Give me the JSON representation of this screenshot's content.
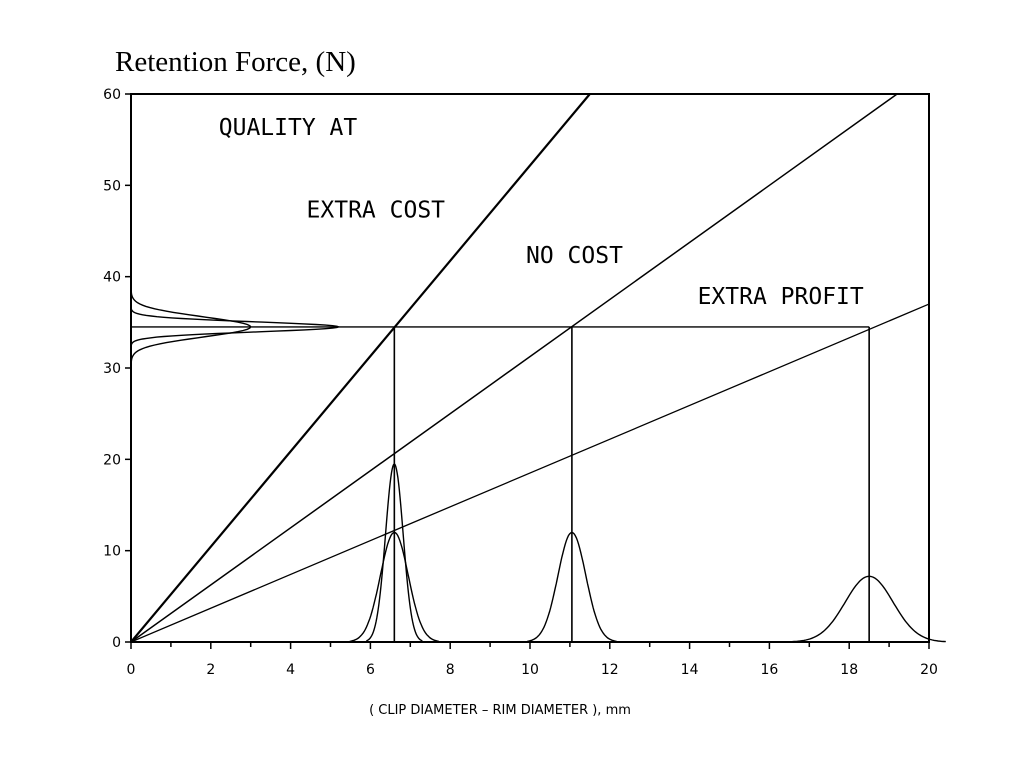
{
  "chart_data": {
    "type": "line",
    "title": "Retention Force, (N)",
    "xlabel": "( CLIP DIAMETER – RIM DIAMETER ), mm",
    "ylabel": "",
    "xlim": [
      0,
      20
    ],
    "ylim": [
      0,
      60
    ],
    "x_ticks": [
      0,
      2,
      4,
      6,
      8,
      10,
      12,
      14,
      16,
      18,
      20
    ],
    "y_ticks": [
      0,
      10,
      20,
      30,
      40,
      50,
      60
    ],
    "grid": false,
    "series": [
      {
        "name": "EXTRA COST",
        "x": [
          0,
          11.5
        ],
        "y": [
          0,
          60
        ]
      },
      {
        "name": "NO COST",
        "x": [
          0,
          19.2
        ],
        "y": [
          0,
          60
        ]
      },
      {
        "name": "EXTRA PROFIT",
        "x": [
          0,
          20
        ],
        "y": [
          0,
          37
        ]
      }
    ],
    "target_force": 34.5,
    "drop_x": [
      6.6,
      11.05,
      18.5
    ],
    "force_distributions": [
      {
        "center": 34.5,
        "peak_x": 5.2,
        "sigma": 0.55
      },
      {
        "center": 34.5,
        "peak_x": 3.0,
        "sigma": 1.1
      }
    ],
    "diameter_distributions": [
      {
        "center": 6.6,
        "peak_y": 19.5,
        "sigma": 0.22
      },
      {
        "center": 6.6,
        "peak_y": 12.0,
        "sigma": 0.35
      },
      {
        "center": 11.05,
        "peak_y": 12.0,
        "sigma": 0.35
      },
      {
        "center": 18.5,
        "peak_y": 7.2,
        "sigma": 0.6
      }
    ],
    "annotations": [
      {
        "text": "QUALITY AT",
        "x": 2.2,
        "y": 55.5
      },
      {
        "text": "EXTRA COST",
        "x": 4.4,
        "y": 46.5
      },
      {
        "text": "NO COST",
        "x": 9.9,
        "y": 41.5
      },
      {
        "text": "EXTRA PROFIT",
        "x": 14.2,
        "y": 37.0
      }
    ]
  }
}
